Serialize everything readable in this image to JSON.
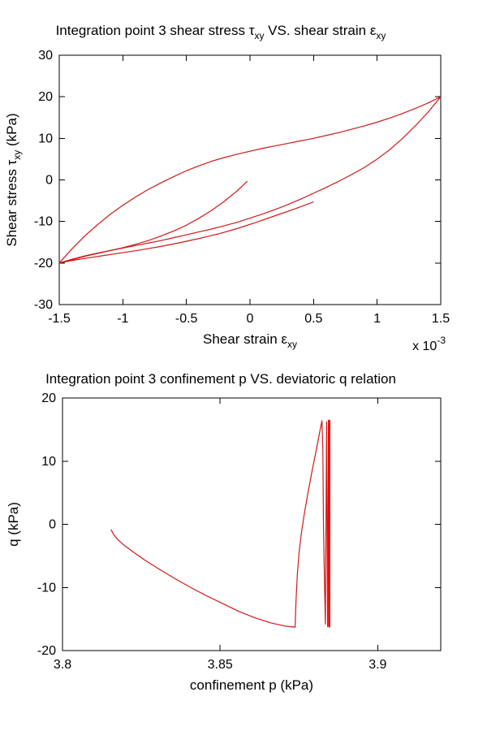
{
  "figure": {
    "background": "#ffffff",
    "text_color": "#000000",
    "axis_color": "#000000",
    "curve_color": "#d01818",
    "bright_red": "#ff0000"
  },
  "chart_data": [
    {
      "type": "line",
      "name": "shear-stress-vs-shear-strain",
      "title_text": "Integration point 3 shear stress τxy VS. shear strain εxy",
      "title_parts": [
        {
          "t": "Integration point 3 shear stress τ"
        },
        {
          "t": "xy",
          "sub": true
        },
        {
          "t": " VS. shear strain ε"
        },
        {
          "t": "xy",
          "sub": true
        }
      ],
      "xlabel_parts": [
        {
          "t": "Shear strain ε"
        },
        {
          "t": "xy",
          "sub": true
        }
      ],
      "ylabel_parts": [
        {
          "t": "Shear stress τ"
        },
        {
          "t": "xy",
          "sub": true
        },
        {
          "t": " (kPa)"
        }
      ],
      "x_multiplier_parts": [
        {
          "t": "x 10"
        },
        {
          "t": "-3",
          "sup": true
        }
      ],
      "x_units_note": "strain values are in units of 1e-3",
      "xlim": [
        -1.5,
        1.5
      ],
      "ylim": [
        -30,
        30
      ],
      "xticks": [
        {
          "v": -1.5,
          "label": "-1.5"
        },
        {
          "v": -1.0,
          "label": "-1"
        },
        {
          "v": -0.5,
          "label": "-0.5"
        },
        {
          "v": 0.0,
          "label": "0"
        },
        {
          "v": 0.5,
          "label": "0.5"
        },
        {
          "v": 1.0,
          "label": "1"
        },
        {
          "v": 1.5,
          "label": "1.5"
        }
      ],
      "yticks": [
        {
          "v": 30,
          "label": "30"
        },
        {
          "v": 20,
          "label": "20"
        },
        {
          "v": 10,
          "label": "10"
        },
        {
          "v": 0,
          "label": "0"
        },
        {
          "v": -10,
          "label": "-10"
        },
        {
          "v": -20,
          "label": "-20"
        },
        {
          "v": -30,
          "label": "-30"
        }
      ],
      "series": [
        {
          "name": "loading-upper-branch",
          "color": "#d01818",
          "width": 1.2,
          "points": [
            [
              -1.5,
              -20
            ],
            [
              -1.4,
              -16.6
            ],
            [
              -1.3,
              -13.5
            ],
            [
              -1.2,
              -10.8
            ],
            [
              -1.1,
              -8.3
            ],
            [
              -1.0,
              -6.1
            ],
            [
              -0.9,
              -4.1
            ],
            [
              -0.8,
              -2.3
            ],
            [
              -0.7,
              -0.7
            ],
            [
              -0.6,
              0.8
            ],
            [
              -0.5,
              2.2
            ],
            [
              -0.4,
              3.4
            ],
            [
              -0.3,
              4.5
            ],
            [
              -0.2,
              5.4
            ],
            [
              -0.1,
              6.2
            ],
            [
              0,
              6.9
            ],
            [
              0.1,
              7.6
            ],
            [
              0.2,
              8.2
            ],
            [
              0.3,
              8.8
            ],
            [
              0.4,
              9.4
            ],
            [
              0.5,
              10.0
            ],
            [
              0.6,
              10.7
            ],
            [
              0.7,
              11.4
            ],
            [
              0.8,
              12.2
            ],
            [
              0.9,
              13.0
            ],
            [
              1.0,
              13.9
            ],
            [
              1.1,
              14.9
            ],
            [
              1.2,
              16.0
            ],
            [
              1.3,
              17.2
            ],
            [
              1.4,
              18.5
            ],
            [
              1.5,
              20
            ]
          ]
        },
        {
          "name": "unloading-lower-branch",
          "color": "#d01818",
          "width": 1.2,
          "points": [
            [
              1.5,
              20
            ],
            [
              1.4,
              16.3
            ],
            [
              1.3,
              13.0
            ],
            [
              1.2,
              10.0
            ],
            [
              1.1,
              7.3
            ],
            [
              1.0,
              5.0
            ],
            [
              0.9,
              3.0
            ],
            [
              0.8,
              1.3
            ],
            [
              0.7,
              -0.3
            ],
            [
              0.6,
              -1.8
            ],
            [
              0.5,
              -3.2
            ],
            [
              0.4,
              -4.6
            ],
            [
              0.3,
              -5.9
            ],
            [
              0.2,
              -7.1
            ],
            [
              0.1,
              -8.2
            ],
            [
              0,
              -9.2
            ],
            [
              -0.1,
              -10.2
            ],
            [
              -0.2,
              -11.0
            ],
            [
              -0.3,
              -11.8
            ],
            [
              -0.4,
              -12.5
            ],
            [
              -0.5,
              -13.2
            ],
            [
              -0.6,
              -13.9
            ],
            [
              -0.7,
              -14.6
            ],
            [
              -0.8,
              -15.2
            ],
            [
              -0.9,
              -15.8
            ],
            [
              -1.0,
              -16.4
            ],
            [
              -1.1,
              -17.0
            ],
            [
              -1.2,
              -17.6
            ],
            [
              -1.3,
              -18.3
            ],
            [
              -1.4,
              -19.1
            ],
            [
              -1.5,
              -20
            ]
          ]
        },
        {
          "name": "second-cycle-lower-branch",
          "color": "#d01818",
          "width": 1.2,
          "points": [
            [
              0.5,
              -5.3
            ],
            [
              0.35,
              -7.0
            ],
            [
              0.2,
              -8.6
            ],
            [
              0.05,
              -10.2
            ],
            [
              -0.1,
              -11.7
            ],
            [
              -0.25,
              -13.0
            ],
            [
              -0.4,
              -14.1
            ],
            [
              -0.55,
              -15.1
            ],
            [
              -0.7,
              -16.0
            ],
            [
              -0.85,
              -16.8
            ],
            [
              -1.0,
              -17.5
            ],
            [
              -1.15,
              -18.2
            ],
            [
              -1.3,
              -18.9
            ],
            [
              -1.4,
              -19.4
            ],
            [
              -1.5,
              -20
            ]
          ]
        },
        {
          "name": "final-unloading-curve",
          "color": "#d01818",
          "width": 1.2,
          "points": [
            [
              -0.02,
              -0.3
            ],
            [
              -0.1,
              -2.6
            ],
            [
              -0.2,
              -5.1
            ],
            [
              -0.3,
              -7.3
            ],
            [
              -0.4,
              -9.2
            ],
            [
              -0.5,
              -10.9
            ],
            [
              -0.6,
              -12.3
            ],
            [
              -0.7,
              -13.5
            ],
            [
              -0.8,
              -14.6
            ],
            [
              -0.9,
              -15.5
            ],
            [
              -1.0,
              -16.3
            ],
            [
              -1.1,
              -17.0
            ],
            [
              -1.2,
              -17.7
            ],
            [
              -1.3,
              -18.4
            ],
            [
              -1.4,
              -19.2
            ],
            [
              -1.5,
              -20
            ]
          ]
        }
      ]
    },
    {
      "type": "line",
      "name": "confinement-p-vs-deviatoric-q",
      "title_text": "Integration point 3 confinement p VS. deviatoric q relation",
      "title_parts": [
        {
          "t": "Integration point 3 confinement p VS. deviatoric q relation"
        }
      ],
      "xlabel_parts": [
        {
          "t": "confinement p (kPa)"
        }
      ],
      "ylabel_parts": [
        {
          "t": "q (kPa)"
        }
      ],
      "x_multiplier_parts": [],
      "xlim": [
        3.8,
        3.92
      ],
      "ylim": [
        -20,
        20
      ],
      "xticks": [
        {
          "v": 3.8,
          "label": "3.8"
        },
        {
          "v": 3.85,
          "label": "3.85"
        },
        {
          "v": 3.9,
          "label": "3.9"
        }
      ],
      "yticks": [
        {
          "v": 20,
          "label": "20"
        },
        {
          "v": 10,
          "label": "10"
        },
        {
          "v": 0,
          "label": "0"
        },
        {
          "v": -10,
          "label": "-10"
        },
        {
          "v": -20,
          "label": "-20"
        }
      ],
      "series": [
        {
          "name": "p-q-path",
          "color": "#d01818",
          "width": 1.2,
          "points": [
            [
              3.8154,
              -0.84
            ],
            [
              3.8162,
              -1.6
            ],
            [
              3.8175,
              -2.4
            ],
            [
              3.8195,
              -3.3
            ],
            [
              3.8225,
              -4.4
            ],
            [
              3.8265,
              -5.8
            ],
            [
              3.831,
              -7.2
            ],
            [
              3.836,
              -8.7
            ],
            [
              3.841,
              -10.1
            ],
            [
              3.846,
              -11.4
            ],
            [
              3.851,
              -12.6
            ],
            [
              3.856,
              -13.8
            ],
            [
              3.861,
              -14.8
            ],
            [
              3.866,
              -15.6
            ],
            [
              3.8705,
              -16.1
            ],
            [
              3.8738,
              -16.3
            ],
            [
              3.8741,
              -12
            ],
            [
              3.8745,
              -8
            ],
            [
              3.8751,
              -4.2
            ],
            [
              3.8759,
              -1.0
            ],
            [
              3.8769,
              2.2
            ],
            [
              3.8781,
              5.6
            ],
            [
              3.8794,
              9.0
            ],
            [
              3.8806,
              12.0
            ],
            [
              3.8816,
              14.6
            ],
            [
              3.8823,
              16.4
            ],
            [
              3.8826,
              12
            ],
            [
              3.8827,
              6
            ],
            [
              3.8828,
              0
            ],
            [
              3.883,
              -6
            ],
            [
              3.8832,
              -11
            ],
            [
              3.8834,
              -15.8
            ],
            [
              3.8838,
              16.2
            ],
            [
              3.8841,
              -16.2
            ],
            [
              3.8844,
              16.5
            ],
            [
              3.8846,
              -16.3
            ],
            [
              3.8848,
              16.5
            ],
            [
              3.8848,
              -16.3
            ]
          ]
        },
        {
          "name": "oscillation-bar",
          "color": "#ff0000",
          "width": 2.6,
          "points": [
            [
              3.8846,
              16.5
            ],
            [
              3.8846,
              -16.2
            ]
          ]
        }
      ]
    }
  ]
}
